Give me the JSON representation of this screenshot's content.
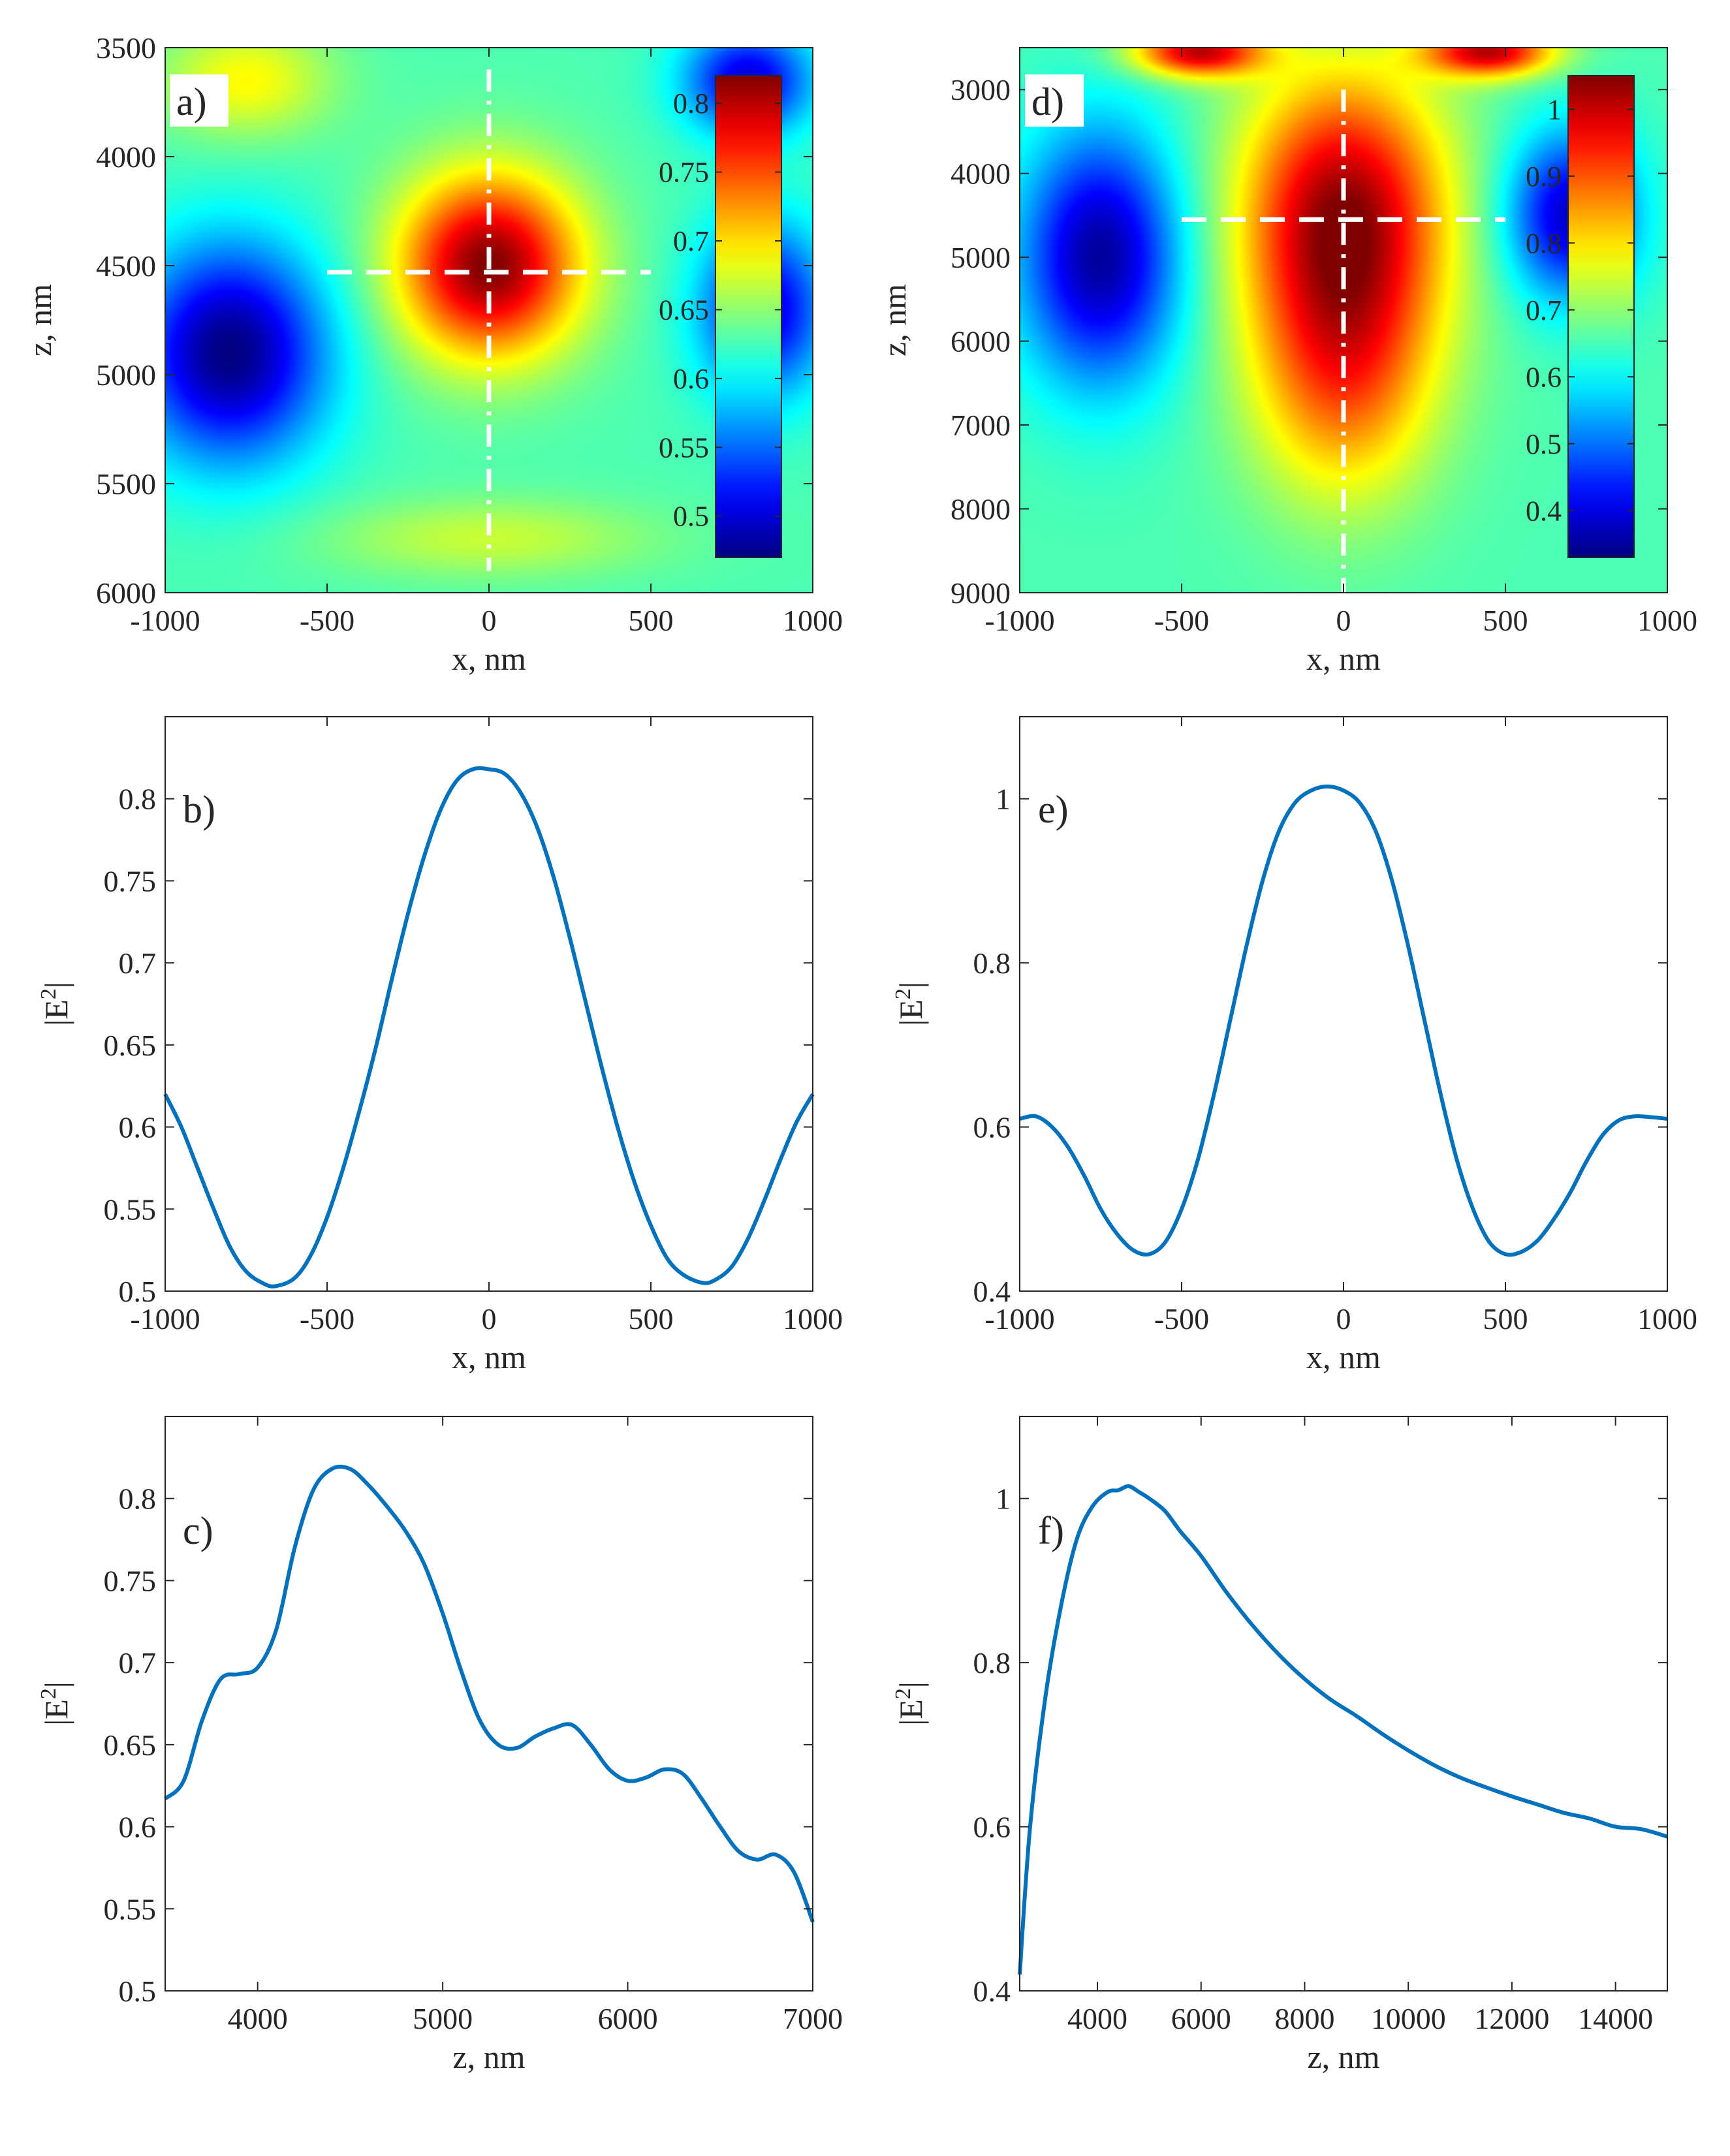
{
  "colors": {
    "line": "#0072BD",
    "axis": "#262626",
    "guide": "#ffffff",
    "jet_stops": [
      "#00008F",
      "#0000FF",
      "#00FFFF",
      "#FFFF00",
      "#FF0000",
      "#800000"
    ]
  },
  "chart_data": [
    {
      "id": "a",
      "type": "heatmap",
      "panel_label": "a)",
      "title": "",
      "xlabel": "x, nm",
      "ylabel": "z, nm",
      "xlim": [
        -1000,
        1000
      ],
      "ylim": [
        3500,
        6000
      ],
      "y_reversed": true,
      "xticks": [
        -1000,
        -500,
        0,
        500,
        1000
      ],
      "yticks": [
        3500,
        4000,
        4500,
        5000,
        5500,
        6000
      ],
      "colorbar": {
        "range": [
          0.47,
          0.82
        ],
        "ticks": [
          0.5,
          0.55,
          0.6,
          0.65,
          0.7,
          0.75,
          0.8
        ]
      },
      "hotspots": [
        {
          "x": 0,
          "z": 4500,
          "value": 0.82,
          "sx": 280,
          "sz": 420
        },
        {
          "x": -800,
          "z": 4900,
          "value": 0.47,
          "sx": 300,
          "sz": 500
        },
        {
          "x": 850,
          "z": 4700,
          "value": 0.5,
          "sx": 200,
          "sz": 400
        },
        {
          "x": -750,
          "z": 3650,
          "value": 0.69,
          "sx": 260,
          "sz": 260
        },
        {
          "x": 800,
          "z": 3650,
          "value": 0.5,
          "sx": 200,
          "sz": 250
        },
        {
          "x": 0,
          "z": 5750,
          "value": 0.67,
          "sx": 500,
          "sz": 180
        }
      ],
      "guides": {
        "horizontal_z": 4530,
        "horizontal_x": [
          -500,
          500
        ],
        "vertical_x": 0,
        "vertical_z": [
          3600,
          5900
        ]
      }
    },
    {
      "id": "d",
      "type": "heatmap",
      "panel_label": "d)",
      "title": "",
      "xlabel": "x, nm",
      "ylabel": "z, nm",
      "xlim": [
        -1000,
        1000
      ],
      "ylim": [
        2500,
        9000
      ],
      "y_reversed": true,
      "xticks": [
        -1000,
        -500,
        0,
        500,
        1000
      ],
      "yticks": [
        3000,
        4000,
        5000,
        6000,
        7000,
        8000,
        9000
      ],
      "colorbar": {
        "range": [
          0.33,
          1.05
        ],
        "ticks": [
          0.4,
          0.5,
          0.6,
          0.7,
          0.8,
          0.9,
          1
        ]
      },
      "hotspots": [
        {
          "x": 0,
          "z": 4500,
          "value": 1.03,
          "sx": 320,
          "sz": 1700
        },
        {
          "x": 0,
          "z": 6500,
          "value": 0.85,
          "sx": 280,
          "sz": 1500
        },
        {
          "x": -450,
          "z": 2550,
          "value": 1.0,
          "sx": 200,
          "sz": 300
        },
        {
          "x": 450,
          "z": 2550,
          "value": 1.0,
          "sx": 200,
          "sz": 300
        },
        {
          "x": -750,
          "z": 5000,
          "value": 0.35,
          "sx": 250,
          "sz": 1500
        },
        {
          "x": 700,
          "z": 4500,
          "value": 0.38,
          "sx": 200,
          "sz": 1000
        }
      ],
      "guides": {
        "horizontal_z": 4550,
        "horizontal_x": [
          -500,
          500
        ],
        "vertical_x": 0,
        "vertical_z": [
          3000,
          9000
        ]
      }
    },
    {
      "id": "b",
      "type": "line",
      "panel_label": "b)",
      "title": "",
      "xlabel": "x, nm",
      "ylabel": "|E2|",
      "xlim": [
        -1000,
        1000
      ],
      "ylim": [
        0.5,
        0.85
      ],
      "xticks": [
        -1000,
        -500,
        0,
        500,
        1000
      ],
      "yticks": [
        0.5,
        0.55,
        0.6,
        0.65,
        0.7,
        0.75,
        0.8
      ],
      "series": [
        {
          "name": "|E2|",
          "x": [
            -1000,
            -950,
            -900,
            -850,
            -800,
            -750,
            -700,
            -660,
            -600,
            -550,
            -500,
            -450,
            -400,
            -350,
            -300,
            -250,
            -200,
            -150,
            -100,
            -50,
            0,
            50,
            100,
            150,
            200,
            250,
            300,
            350,
            400,
            450,
            500,
            550,
            600,
            660,
            700,
            750,
            800,
            850,
            900,
            950,
            1000
          ],
          "y": [
            0.62,
            0.6,
            0.575,
            0.55,
            0.527,
            0.512,
            0.505,
            0.503,
            0.508,
            0.522,
            0.545,
            0.575,
            0.61,
            0.648,
            0.69,
            0.73,
            0.765,
            0.793,
            0.811,
            0.818,
            0.818,
            0.815,
            0.803,
            0.782,
            0.752,
            0.715,
            0.675,
            0.635,
            0.598,
            0.566,
            0.54,
            0.52,
            0.51,
            0.505,
            0.507,
            0.515,
            0.532,
            0.555,
            0.58,
            0.603,
            0.62
          ]
        }
      ]
    },
    {
      "id": "e",
      "type": "line",
      "panel_label": "e)",
      "title": "",
      "xlabel": "x, nm",
      "ylabel": "|E2|",
      "xlim": [
        -1000,
        1000
      ],
      "ylim": [
        0.4,
        1.1
      ],
      "xticks": [
        -1000,
        -500,
        0,
        500,
        1000
      ],
      "yticks": [
        0.4,
        0.6,
        0.8,
        1
      ],
      "series": [
        {
          "name": "|E2|",
          "x": [
            -1000,
            -950,
            -900,
            -850,
            -800,
            -750,
            -700,
            -650,
            -600,
            -550,
            -500,
            -450,
            -400,
            -350,
            -300,
            -250,
            -200,
            -150,
            -100,
            -50,
            0,
            50,
            100,
            150,
            200,
            250,
            300,
            350,
            400,
            450,
            500,
            550,
            600,
            650,
            700,
            750,
            800,
            850,
            900,
            950,
            1000
          ],
          "y": [
            0.61,
            0.613,
            0.6,
            0.575,
            0.54,
            0.5,
            0.47,
            0.45,
            0.445,
            0.46,
            0.5,
            0.56,
            0.64,
            0.73,
            0.82,
            0.9,
            0.96,
            0.995,
            1.01,
            1.015,
            1.01,
            0.995,
            0.96,
            0.9,
            0.82,
            0.73,
            0.64,
            0.56,
            0.5,
            0.46,
            0.445,
            0.448,
            0.462,
            0.488,
            0.52,
            0.558,
            0.59,
            0.608,
            0.613,
            0.612,
            0.61
          ]
        }
      ]
    },
    {
      "id": "c",
      "type": "line",
      "panel_label": "c)",
      "title": "",
      "xlabel": "z, nm",
      "ylabel": "|E2|",
      "xlim": [
        3500,
        7000
      ],
      "ylim": [
        0.5,
        0.85
      ],
      "xticks": [
        4000,
        5000,
        6000,
        7000
      ],
      "yticks": [
        0.5,
        0.55,
        0.6,
        0.65,
        0.7,
        0.75,
        0.8
      ],
      "series": [
        {
          "name": "|E2|",
          "x": [
            3500,
            3600,
            3700,
            3800,
            3900,
            4000,
            4100,
            4200,
            4300,
            4400,
            4500,
            4600,
            4700,
            4800,
            4900,
            5000,
            5100,
            5200,
            5300,
            5400,
            5500,
            5600,
            5700,
            5800,
            5900,
            6000,
            6100,
            6200,
            6300,
            6400,
            6500,
            6600,
            6700,
            6800,
            6900,
            7000
          ],
          "y": [
            0.617,
            0.628,
            0.665,
            0.69,
            0.693,
            0.697,
            0.72,
            0.77,
            0.805,
            0.818,
            0.818,
            0.808,
            0.795,
            0.78,
            0.76,
            0.73,
            0.695,
            0.665,
            0.65,
            0.648,
            0.655,
            0.66,
            0.662,
            0.65,
            0.635,
            0.628,
            0.63,
            0.635,
            0.632,
            0.617,
            0.6,
            0.585,
            0.58,
            0.583,
            0.572,
            0.542
          ]
        }
      ]
    },
    {
      "id": "f",
      "type": "line",
      "panel_label": "f)",
      "title": "",
      "xlabel": "z, nm",
      "ylabel": "|E2|",
      "xlim": [
        2500,
        15000
      ],
      "ylim": [
        0.4,
        1.1
      ],
      "xticks": [
        4000,
        6000,
        8000,
        10000,
        12000,
        14000
      ],
      "yticks": [
        0.4,
        0.6,
        0.8,
        1
      ],
      "series": [
        {
          "name": "|E2|",
          "x": [
            2500,
            2700,
            3000,
            3300,
            3600,
            3900,
            4200,
            4400,
            4600,
            4800,
            5000,
            5300,
            5600,
            6000,
            6500,
            7000,
            7500,
            8000,
            8500,
            9000,
            9500,
            10000,
            10500,
            11000,
            11500,
            12000,
            12500,
            13000,
            13500,
            14000,
            14500,
            15000
          ],
          "y": [
            0.42,
            0.6,
            0.76,
            0.87,
            0.95,
            0.99,
            1.008,
            1.01,
            1.015,
            1.008,
            1.0,
            0.985,
            0.96,
            0.93,
            0.885,
            0.845,
            0.81,
            0.78,
            0.755,
            0.735,
            0.713,
            0.693,
            0.675,
            0.66,
            0.648,
            0.637,
            0.627,
            0.617,
            0.61,
            0.6,
            0.597,
            0.588
          ]
        }
      ]
    }
  ]
}
